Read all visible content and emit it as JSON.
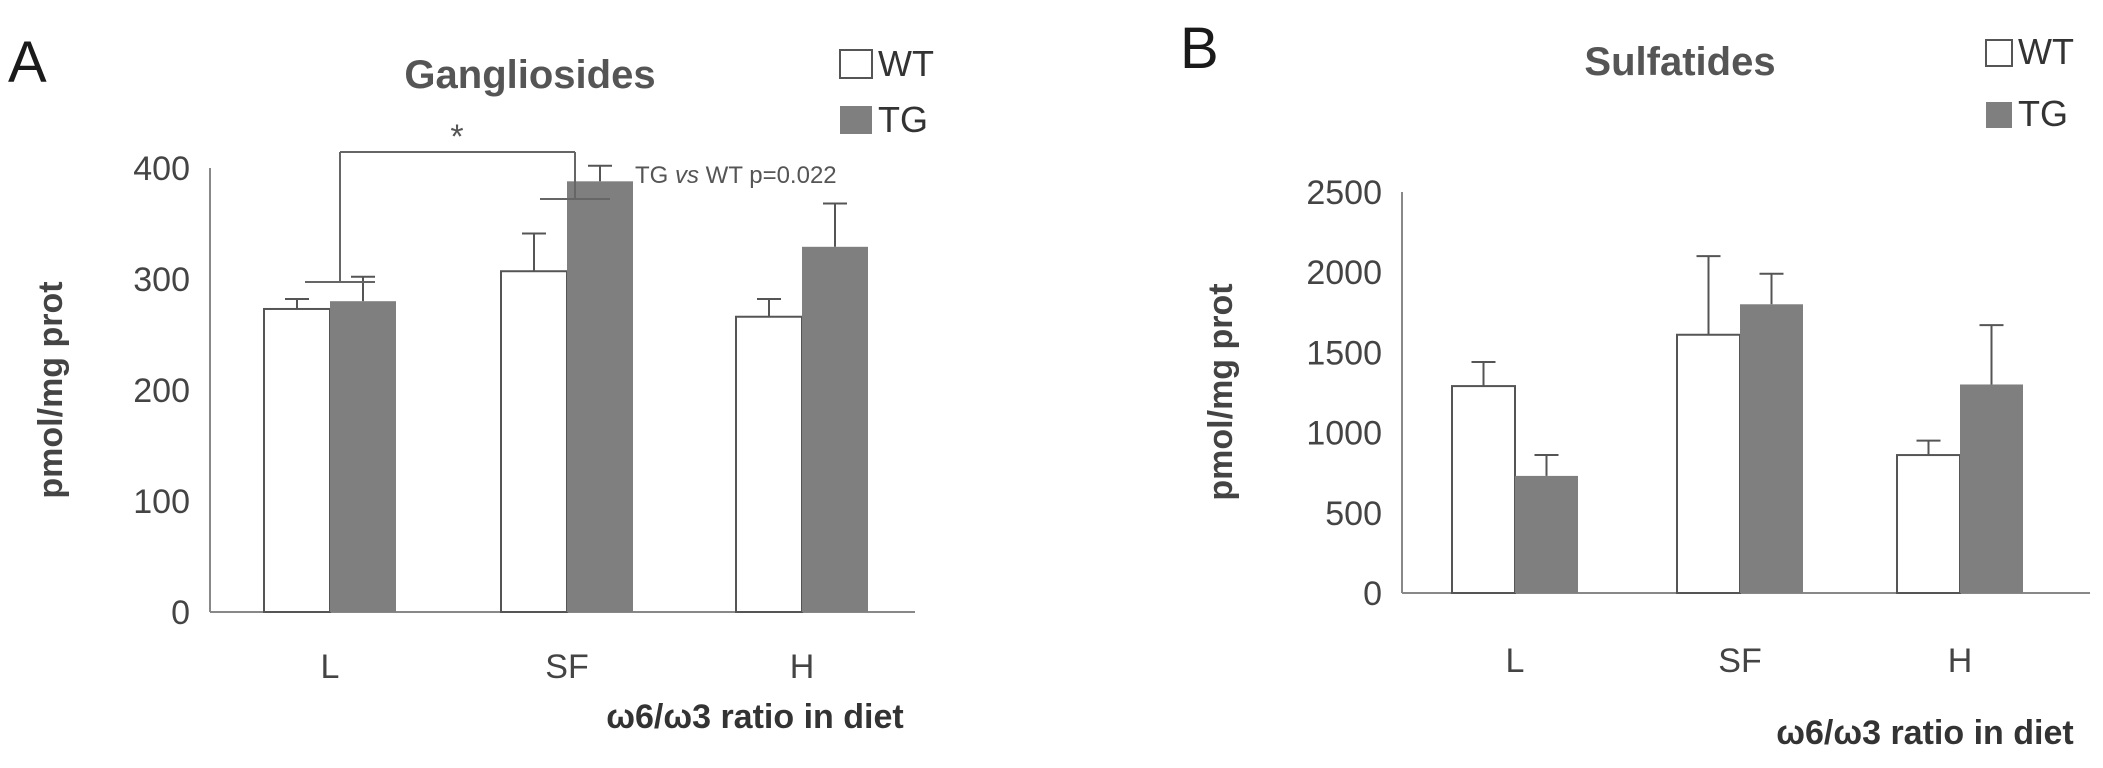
{
  "chart_data": [
    {
      "type": "bar",
      "panel_label": "A",
      "title": "Gangliosides",
      "xlabel": "ω6/ω3 ratio in diet",
      "ylabel": "pmol/mg prot",
      "categories": [
        "L",
        "SF",
        "H"
      ],
      "ylim": [
        0,
        400
      ],
      "yticks": [
        "0",
        "100",
        "200",
        "300",
        "400"
      ],
      "series": [
        {
          "name": "WT",
          "color": "#ffffff",
          "values": [
            273,
            307,
            266
          ],
          "errors": [
            9,
            34,
            16
          ]
        },
        {
          "name": "TG",
          "color": "#7f7f7f",
          "values": [
            280,
            388,
            329
          ],
          "errors": [
            22,
            14,
            39
          ]
        }
      ],
      "significance": {
        "marker": "*",
        "text_prefix": "TG ",
        "text_vs": "vs",
        "text_suffix": " WT p=0.022",
        "from_category": 0,
        "to_category": 1
      },
      "legend": "top-right"
    },
    {
      "type": "bar",
      "panel_label": "B",
      "title": "Sulfatides",
      "xlabel": "ω6/ω3 ratio in diet",
      "ylabel": "pmol/mg prot",
      "categories": [
        "L",
        "SF",
        "H"
      ],
      "ylim": [
        0,
        2500
      ],
      "yticks": [
        "0",
        "500",
        "1000",
        "1500",
        "2000",
        "2500"
      ],
      "series": [
        {
          "name": "WT",
          "color": "#ffffff",
          "values": [
            1290,
            1610,
            860
          ],
          "errors": [
            150,
            490,
            90
          ]
        },
        {
          "name": "TG",
          "color": "#7f7f7f",
          "values": [
            730,
            1800,
            1300
          ],
          "errors": [
            130,
            190,
            370
          ]
        }
      ],
      "legend": "top-right"
    }
  ]
}
